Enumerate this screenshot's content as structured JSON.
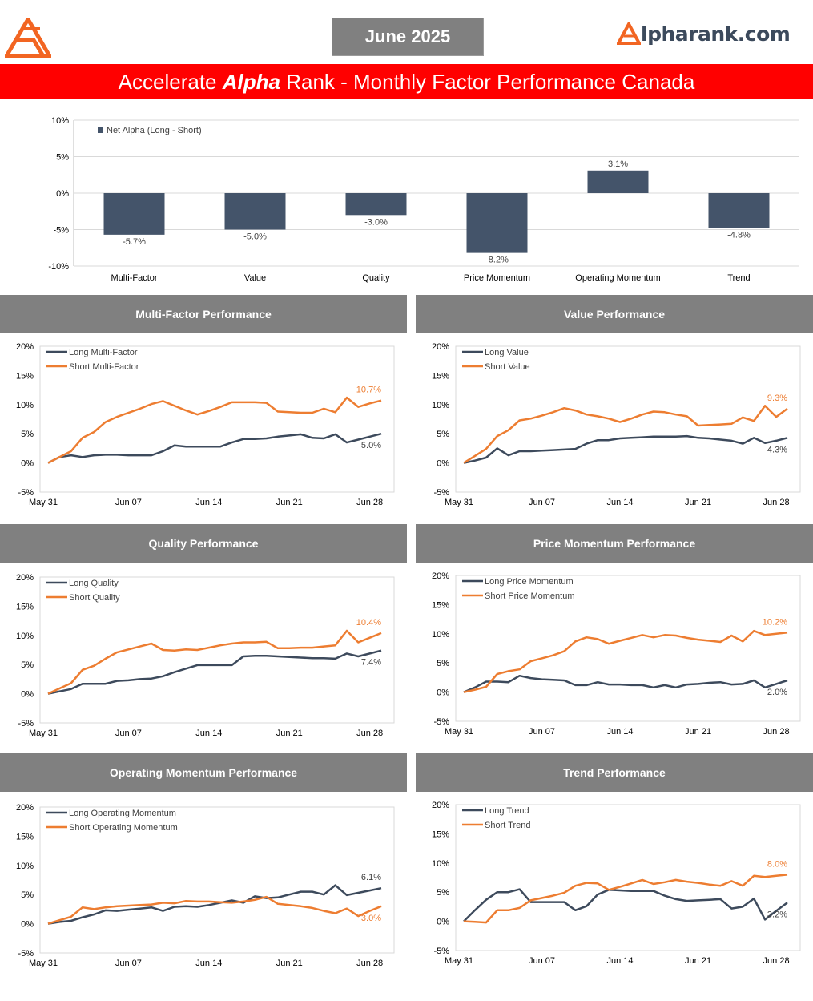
{
  "header": {
    "month": "June 2025",
    "brand_text": "lpharank.com",
    "banner_prefix": "Accelerate ",
    "banner_alpha": "Alpha",
    "banner_suffix": " Rank - Monthly Factor Performance Canada"
  },
  "colors": {
    "long": "#3d4a5c",
    "short": "#ed7d31",
    "bar": "#44546a",
    "banner": "#ff0000",
    "panel_header": "#808080"
  },
  "chart_data": [
    {
      "type": "bar",
      "legend": "Net Alpha (Long - Short)",
      "categories": [
        "Multi-Factor",
        "Value",
        "Quality",
        "Price Momentum",
        "Operating Momentum",
        "Trend"
      ],
      "values": [
        -5.7,
        -5.0,
        -3.0,
        -8.2,
        3.1,
        -4.8
      ],
      "data_labels": [
        "-5.7%",
        "-5.0%",
        "-3.0%",
        "-8.2%",
        "3.1%",
        "-4.8%"
      ],
      "y_ticks": [
        "10%",
        "5%",
        "0%",
        "-5%",
        "-10%"
      ],
      "ylim": [
        -10,
        10
      ]
    },
    {
      "type": "line",
      "title": "Multi-Factor Performance",
      "x_ticks": [
        "May 31",
        "Jun 07",
        "Jun 14",
        "Jun 21",
        "Jun 28"
      ],
      "y_ticks": [
        "20%",
        "15%",
        "10%",
        "5%",
        "0%",
        "-5%"
      ],
      "ylim": [
        -5,
        20
      ],
      "series": [
        {
          "name": "Long Multi-Factor",
          "end_label": "5.0%",
          "values": [
            0,
            1.0,
            1.3,
            1.0,
            1.3,
            1.4,
            1.4,
            1.3,
            1.3,
            1.3,
            2.0,
            3.0,
            2.8,
            2.8,
            2.8,
            2.8,
            3.5,
            4.1,
            4.1,
            4.2,
            4.5,
            4.7,
            4.9,
            4.3,
            4.2,
            4.9,
            3.5,
            4.0,
            4.5,
            5.0
          ]
        },
        {
          "name": "Short Multi-Factor",
          "end_label": "10.7%",
          "values": [
            0,
            1.0,
            2.0,
            4.3,
            5.3,
            7.0,
            7.9,
            8.6,
            9.3,
            10.1,
            10.6,
            9.8,
            9.0,
            8.3,
            8.9,
            9.6,
            10.4,
            10.4,
            10.4,
            10.3,
            8.8,
            8.7,
            8.6,
            8.6,
            9.3,
            8.7,
            11.2,
            9.6,
            10.2,
            10.7
          ]
        }
      ]
    },
    {
      "type": "line",
      "title": "Value Performance",
      "x_ticks": [
        "May 31",
        "Jun 07",
        "Jun 14",
        "Jun 21",
        "Jun 28"
      ],
      "y_ticks": [
        "20%",
        "15%",
        "10%",
        "5%",
        "0%",
        "-5%"
      ],
      "ylim": [
        -5,
        20
      ],
      "series": [
        {
          "name": "Long Value",
          "end_label": "4.3%",
          "values": [
            0,
            0.4,
            0.9,
            2.5,
            1.3,
            2.0,
            2.0,
            2.1,
            2.2,
            2.3,
            2.4,
            3.3,
            3.9,
            3.9,
            4.2,
            4.3,
            4.4,
            4.5,
            4.5,
            4.5,
            4.6,
            4.3,
            4.2,
            4.0,
            3.8,
            3.3,
            4.3,
            3.4,
            3.8,
            4.3
          ]
        },
        {
          "name": "Short Value",
          "end_label": "9.3%",
          "values": [
            0,
            1.2,
            2.4,
            4.6,
            5.6,
            7.3,
            7.6,
            8.1,
            8.7,
            9.4,
            9.0,
            8.3,
            8.0,
            7.6,
            7.0,
            7.6,
            8.3,
            8.8,
            8.7,
            8.3,
            8.0,
            6.4,
            6.5,
            6.6,
            6.7,
            7.8,
            7.2,
            9.8,
            7.9,
            9.3
          ]
        }
      ]
    },
    {
      "type": "line",
      "title": "Quality Performance",
      "x_ticks": [
        "May 31",
        "Jun 07",
        "Jun 14",
        "Jun 21",
        "Jun 28"
      ],
      "y_ticks": [
        "20%",
        "15%",
        "10%",
        "5%",
        "0%",
        "-5%"
      ],
      "ylim": [
        -5,
        20
      ],
      "series": [
        {
          "name": "Long Quality",
          "end_label": "7.4%",
          "values": [
            0,
            0.4,
            0.8,
            1.7,
            1.7,
            1.7,
            2.2,
            2.3,
            2.5,
            2.6,
            3.0,
            3.7,
            4.3,
            4.9,
            4.9,
            4.9,
            4.9,
            6.4,
            6.5,
            6.5,
            6.4,
            6.3,
            6.2,
            6.1,
            6.1,
            6.0,
            6.9,
            6.4,
            6.9,
            7.4
          ]
        },
        {
          "name": "Short Quality",
          "end_label": "10.4%",
          "values": [
            0,
            0.9,
            1.8,
            4.1,
            4.8,
            6.0,
            7.1,
            7.6,
            8.1,
            8.6,
            7.5,
            7.4,
            7.6,
            7.5,
            7.9,
            8.3,
            8.6,
            8.8,
            8.8,
            8.9,
            7.8,
            7.8,
            7.9,
            7.9,
            8.1,
            8.3,
            10.8,
            8.8,
            9.6,
            10.4
          ]
        }
      ]
    },
    {
      "type": "line",
      "title": "Price Momentum Performance",
      "x_ticks": [
        "May 31",
        "Jun 07",
        "Jun 14",
        "Jun 21",
        "Jun 28"
      ],
      "y_ticks": [
        "20%",
        "15%",
        "10%",
        "5%",
        "0%",
        "-5%"
      ],
      "ylim": [
        -5,
        20
      ],
      "series": [
        {
          "name": "Long Price Momentum",
          "end_label": "2.0%",
          "values": [
            0,
            0.8,
            1.8,
            1.8,
            1.7,
            2.8,
            2.4,
            2.2,
            2.1,
            2.0,
            1.2,
            1.2,
            1.7,
            1.3,
            1.3,
            1.2,
            1.2,
            0.8,
            1.2,
            0.8,
            1.3,
            1.4,
            1.6,
            1.7,
            1.3,
            1.4,
            2.0,
            0.8,
            1.4,
            2.0
          ]
        },
        {
          "name": "Short Price Momentum",
          "end_label": "10.2%",
          "values": [
            0,
            0.4,
            0.9,
            3.1,
            3.6,
            3.9,
            5.3,
            5.8,
            6.3,
            7.0,
            8.7,
            9.4,
            9.1,
            8.3,
            8.8,
            9.3,
            9.8,
            9.4,
            9.8,
            9.7,
            9.3,
            9.0,
            8.8,
            8.6,
            9.7,
            8.7,
            10.5,
            9.8,
            10.0,
            10.2
          ]
        }
      ]
    },
    {
      "type": "line",
      "title": "Operating Momentum Performance",
      "x_ticks": [
        "May 31",
        "Jun 07",
        "Jun 14",
        "Jun 21",
        "Jun 28"
      ],
      "y_ticks": [
        "20%",
        "15%",
        "10%",
        "5%",
        "0%",
        "-5%"
      ],
      "ylim": [
        -5,
        20
      ],
      "series": [
        {
          "name": "Long Operating Momentum",
          "end_label": "6.1%",
          "values": [
            0,
            0.3,
            0.5,
            1.1,
            1.6,
            2.3,
            2.2,
            2.4,
            2.6,
            2.8,
            2.2,
            2.9,
            3.0,
            2.9,
            3.2,
            3.6,
            4.0,
            3.6,
            4.7,
            4.4,
            4.5,
            5.0,
            5.5,
            5.5,
            5.0,
            6.6,
            4.9,
            5.3,
            5.7,
            6.1
          ]
        },
        {
          "name": "Short Operating Momentum",
          "end_label": "3.0%",
          "values": [
            0,
            0.6,
            1.2,
            2.8,
            2.5,
            2.8,
            3.0,
            3.1,
            3.2,
            3.3,
            3.6,
            3.5,
            3.9,
            3.8,
            3.8,
            3.7,
            3.6,
            3.8,
            4.1,
            4.6,
            3.4,
            3.2,
            3.0,
            2.7,
            2.2,
            1.8,
            2.6,
            1.3,
            2.2,
            3.0
          ]
        }
      ]
    },
    {
      "type": "line",
      "title": "Trend Performance",
      "x_ticks": [
        "May 31",
        "Jun 07",
        "Jun 14",
        "Jun 21",
        "Jun 28"
      ],
      "y_ticks": [
        "20%",
        "15%",
        "10%",
        "5%",
        "0%",
        "-5%"
      ],
      "ylim": [
        -5,
        20
      ],
      "series": [
        {
          "name": "Long Trend",
          "end_label": "3.2%",
          "values": [
            0,
            1.9,
            3.7,
            5.0,
            5.0,
            5.5,
            3.3,
            3.3,
            3.3,
            3.3,
            1.9,
            2.6,
            4.6,
            5.4,
            5.3,
            5.2,
            5.2,
            5.2,
            4.4,
            3.8,
            3.5,
            3.6,
            3.7,
            3.8,
            2.2,
            2.5,
            3.9,
            0.3,
            1.8,
            3.2
          ]
        },
        {
          "name": "Short Trend",
          "end_label": "8.0%",
          "values": [
            0,
            -0.1,
            -0.2,
            1.9,
            1.9,
            2.3,
            3.6,
            4.0,
            4.4,
            4.9,
            6.1,
            6.6,
            6.5,
            5.4,
            5.9,
            6.5,
            7.1,
            6.4,
            6.7,
            7.1,
            6.8,
            6.6,
            6.3,
            6.1,
            6.9,
            6.1,
            7.8,
            7.6,
            7.8,
            8.0
          ]
        }
      ]
    }
  ]
}
